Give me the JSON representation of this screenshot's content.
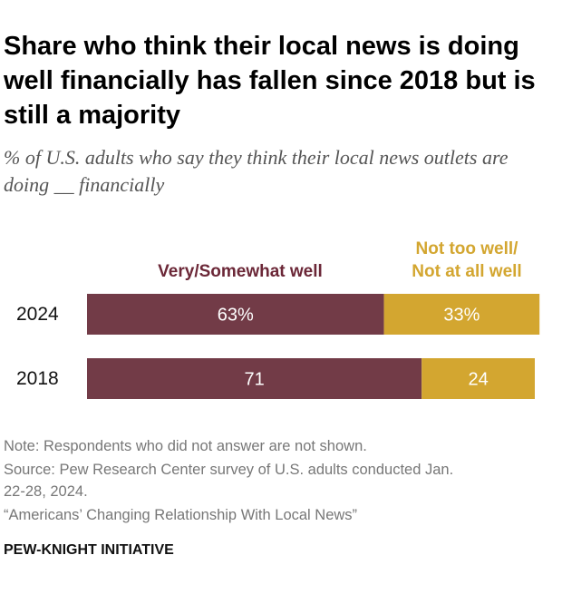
{
  "chart_data": {
    "type": "bar",
    "orientation": "horizontal",
    "stacked": true,
    "title": "Share who think their local news is doing well financially has fallen since 2018 but is still a majority",
    "subtitle": "% of U.S. adults who say they think their local news outlets are doing __ financially",
    "categories": [
      "2024",
      "2018"
    ],
    "series": [
      {
        "name": "Very/Somewhat well",
        "values": [
          63,
          71
        ],
        "labels": [
          "63%",
          "71"
        ],
        "color": "#723b47"
      },
      {
        "name": "Not too well/ Not at all well",
        "values": [
          33,
          24
        ],
        "labels": [
          "33%",
          "24"
        ],
        "color": "#d3a630"
      }
    ],
    "legend_lines": [
      [
        "Very/Somewhat well"
      ],
      [
        "Not too well/",
        "Not at all well"
      ]
    ],
    "grid": false
  },
  "notes": {
    "note": "Note: Respondents who did not answer are not shown.",
    "source_1": "Source: Pew Research Center survey of U.S. adults conducted Jan.",
    "source_2": "22-28, 2024.",
    "report": "“Americans’ Changing Relationship With Local News”"
  },
  "brand": "PEW-KNIGHT INITIATIVE"
}
